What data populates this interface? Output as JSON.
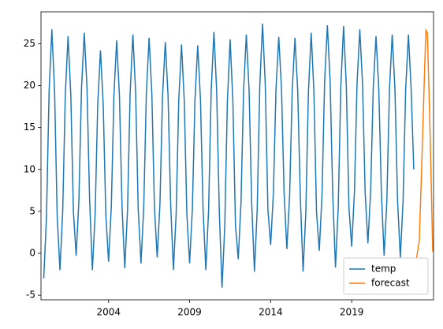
{
  "chart_data": {
    "type": "line",
    "xlim": [
      1999.83,
      2024.05
    ],
    "xticks": [
      2004,
      2009,
      2014,
      2019
    ],
    "ylim": [
      -5.55,
      28.8
    ],
    "yticks": [
      -5,
      0,
      5,
      10,
      15,
      20,
      25
    ],
    "legend": "lower right",
    "series": [
      {
        "name": "temp",
        "color": "#1f77b4",
        "x": [
          2000,
          2000.17,
          2000.33,
          2000.5,
          2000.67,
          2000.83,
          2001,
          2001.17,
          2001.33,
          2001.5,
          2001.67,
          2001.83,
          2002,
          2002.17,
          2002.33,
          2002.5,
          2002.67,
          2002.83,
          2003,
          2003.17,
          2003.33,
          2003.5,
          2003.67,
          2003.83,
          2004,
          2004.17,
          2004.33,
          2004.5,
          2004.67,
          2004.83,
          2005,
          2005.17,
          2005.33,
          2005.5,
          2005.67,
          2005.83,
          2006,
          2006.17,
          2006.33,
          2006.5,
          2006.67,
          2006.83,
          2007,
          2007.17,
          2007.33,
          2007.5,
          2007.67,
          2007.83,
          2008,
          2008.17,
          2008.33,
          2008.5,
          2008.67,
          2008.83,
          2009,
          2009.17,
          2009.33,
          2009.5,
          2009.67,
          2009.83,
          2010,
          2010.17,
          2010.33,
          2010.5,
          2010.67,
          2010.83,
          2011,
          2011.17,
          2011.33,
          2011.5,
          2011.67,
          2011.83,
          2012,
          2012.17,
          2012.33,
          2012.5,
          2012.67,
          2012.83,
          2013,
          2013.17,
          2013.33,
          2013.5,
          2013.67,
          2013.83,
          2014,
          2014.17,
          2014.33,
          2014.5,
          2014.67,
          2014.83,
          2015,
          2015.17,
          2015.33,
          2015.5,
          2015.67,
          2015.83,
          2016,
          2016.17,
          2016.33,
          2016.5,
          2016.67,
          2016.83,
          2017,
          2017.17,
          2017.33,
          2017.5,
          2017.67,
          2017.83,
          2018,
          2018.17,
          2018.33,
          2018.5,
          2018.67,
          2018.83,
          2019,
          2019.17,
          2019.33,
          2019.5,
          2019.67,
          2019.83,
          2020,
          2020.17,
          2020.33,
          2020.5,
          2020.67,
          2020.83,
          2021,
          2021.17,
          2021.33,
          2021.5,
          2021.67,
          2021.83,
          2022,
          2022.17,
          2022.33,
          2022.5,
          2022.67,
          2022.83
        ],
        "values": [
          -3,
          4.4,
          19.3,
          26.7,
          19.3,
          4.4,
          -2,
          5.0,
          18.9,
          25.9,
          18.9,
          5.0,
          -0.3,
          6.4,
          19.7,
          26.3,
          19.7,
          6.4,
          -2,
          4.6,
          17.7,
          24.2,
          17.7,
          4.6,
          -1,
          5.6,
          18.8,
          25.4,
          18.8,
          5.6,
          -1.8,
          5.2,
          19.1,
          26.1,
          19.1,
          5.2,
          -1.2,
          5.5,
          19.0,
          25.7,
          19.0,
          5.5,
          -0.5,
          5.9,
          18.8,
          25.2,
          18.8,
          5.9,
          -2,
          4.7,
          18.2,
          24.9,
          18.2,
          4.7,
          -1.2,
          5.3,
          18.3,
          24.8,
          18.3,
          5.3,
          -2,
          5.1,
          19.3,
          26.4,
          19.3,
          5.1,
          -4.1,
          3.3,
          18.1,
          25.5,
          18.1,
          3.3,
          -0.7,
          6.0,
          19.4,
          26.1,
          19.4,
          6.0,
          -2.2,
          5.2,
          20.0,
          27.4,
          20.0,
          5.2,
          1.0,
          7.2,
          19.6,
          25.8,
          19.6,
          7.2,
          0.5,
          6.8,
          19.4,
          25.7,
          19.4,
          6.8,
          -2.2,
          4.9,
          19.2,
          26.3,
          19.2,
          4.9,
          0.3,
          7.0,
          20.5,
          27.2,
          20.5,
          7.0,
          -1.7,
          5.5,
          19.9,
          27.1,
          19.9,
          5.5,
          0.8,
          7.3,
          20.2,
          26.7,
          20.2,
          7.3,
          1.2,
          7.4,
          19.7,
          25.9,
          19.7,
          7.4,
          -0.3,
          6.3,
          19.5,
          26.1,
          19.5,
          6.3,
          -0.5,
          6.2,
          19.5,
          26.1,
          19.5,
          10
        ]
      },
      {
        "name": "forecast",
        "color": "#ff7f0e",
        "x": [
          2023,
          2023.17,
          2023.33,
          2023.5,
          2023.58,
          2023.67,
          2023.83,
          2024
        ],
        "values": [
          -0.6,
          1.5,
          11,
          22,
          26.6,
          26.3,
          15,
          0.2
        ]
      }
    ]
  }
}
